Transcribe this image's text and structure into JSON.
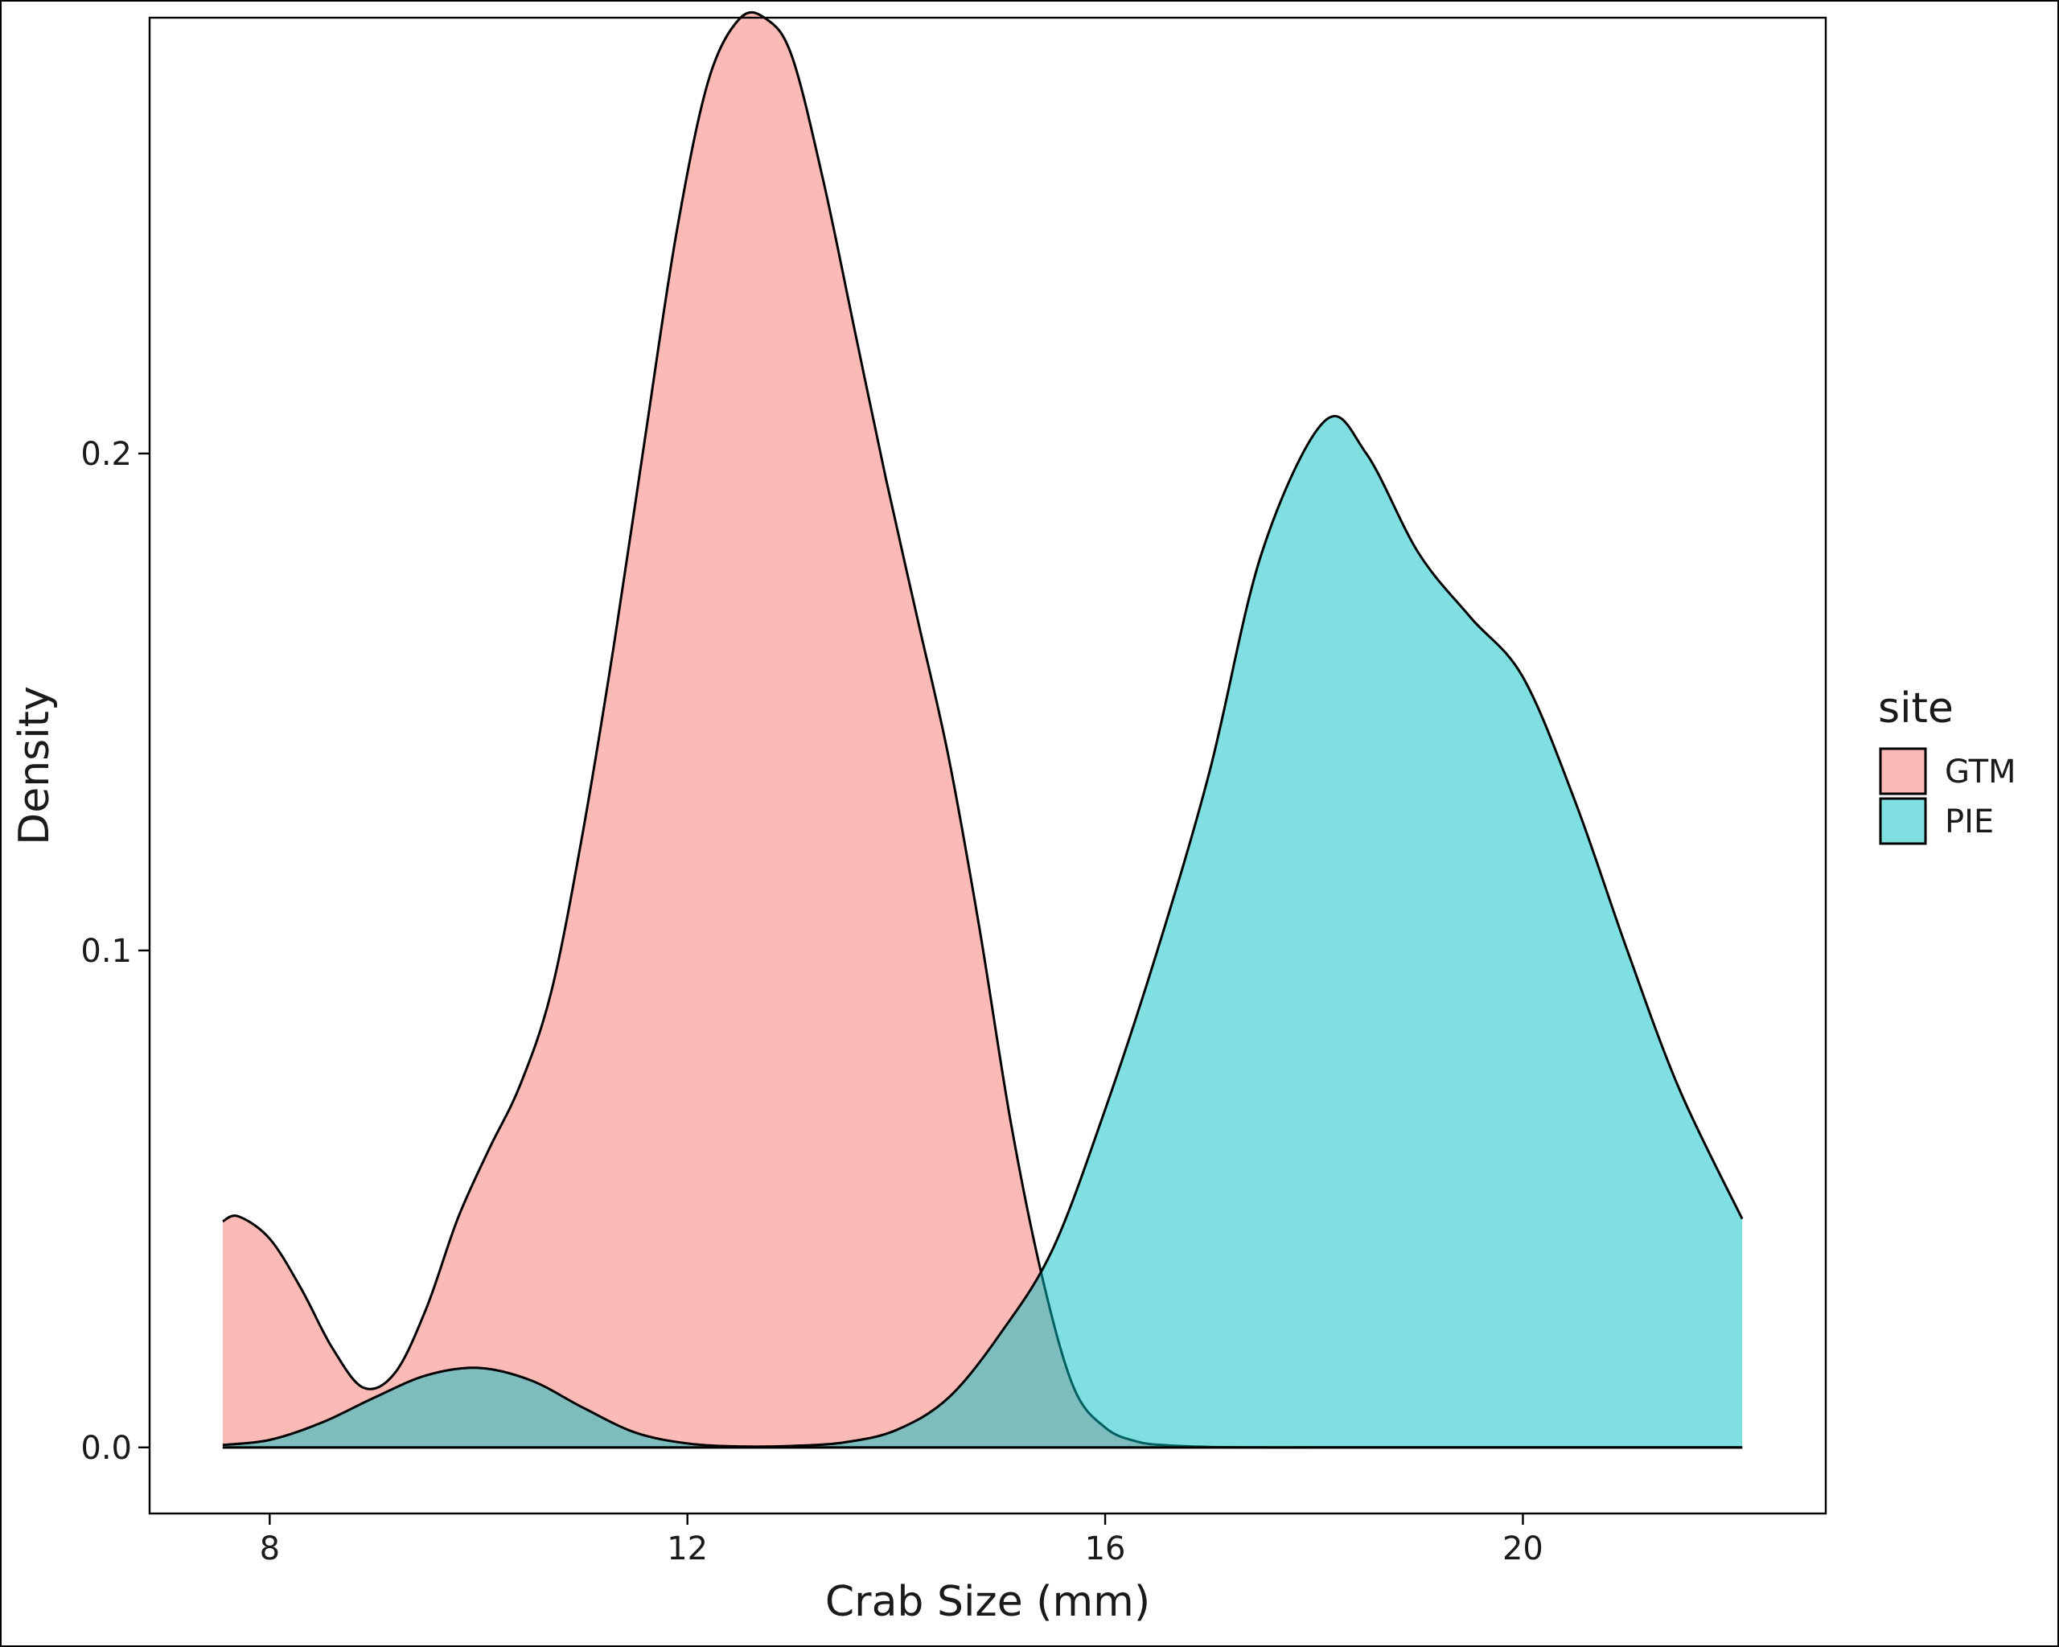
{
  "chart_data": {
    "type": "area",
    "title": "",
    "xlabel": "Crab Size (mm)",
    "ylabel": "Density",
    "xlim": [
      6.85,
      22.9
    ],
    "ylim": [
      -0.0133,
      0.2877
    ],
    "x_ticks": [
      8,
      12,
      16,
      20
    ],
    "x_tick_labels": [
      "8",
      "12",
      "16",
      "20"
    ],
    "y_ticks": [
      0.0,
      0.1,
      0.2
    ],
    "y_tick_labels": [
      "0.0",
      "0.1",
      "0.2"
    ],
    "grid": false,
    "legend": {
      "title": "site",
      "position": "right"
    },
    "series": [
      {
        "name": "GTM",
        "color": "#F8766D",
        "x": [
          7.55,
          7.7,
          8.0,
          8.3,
          8.6,
          8.9,
          9.2,
          9.5,
          9.8,
          10.1,
          10.4,
          10.7,
          11.0,
          11.3,
          11.6,
          11.9,
          12.2,
          12.5,
          12.75,
          13.0,
          13.3,
          13.6,
          13.9,
          14.2,
          14.5,
          14.8,
          15.1,
          15.4,
          15.7,
          16.0,
          16.3,
          16.6,
          17.0,
          17.5,
          18.0,
          19.0,
          20.0,
          21.0,
          22.1
        ],
        "y": [
          0.0455,
          0.0465,
          0.042,
          0.032,
          0.02,
          0.012,
          0.015,
          0.028,
          0.046,
          0.06,
          0.073,
          0.092,
          0.124,
          0.162,
          0.204,
          0.245,
          0.275,
          0.2875,
          0.2875,
          0.28,
          0.255,
          0.225,
          0.195,
          0.167,
          0.139,
          0.104,
          0.065,
          0.034,
          0.012,
          0.004,
          0.0012,
          0.0004,
          0.0001,
          0.0,
          0.0,
          0.0,
          0.0,
          0.0,
          0.0
        ]
      },
      {
        "name": "PIE",
        "color": "#00BFC4",
        "x": [
          7.55,
          8.0,
          8.5,
          9.0,
          9.5,
          10.0,
          10.5,
          11.0,
          11.5,
          12.0,
          12.5,
          13.0,
          13.5,
          14.0,
          14.5,
          15.0,
          15.5,
          16.0,
          16.5,
          17.0,
          17.5,
          18.1,
          18.5,
          19.0,
          19.5,
          20.0,
          20.5,
          21.0,
          21.5,
          22.1
        ],
        "y": [
          0.0005,
          0.0015,
          0.005,
          0.01,
          0.0145,
          0.016,
          0.0135,
          0.008,
          0.003,
          0.0008,
          0.0002,
          0.0003,
          0.001,
          0.0035,
          0.01,
          0.023,
          0.04,
          0.068,
          0.1,
          0.136,
          0.18,
          0.2065,
          0.2,
          0.18,
          0.167,
          0.155,
          0.13,
          0.1,
          0.072,
          0.046
        ]
      }
    ]
  }
}
